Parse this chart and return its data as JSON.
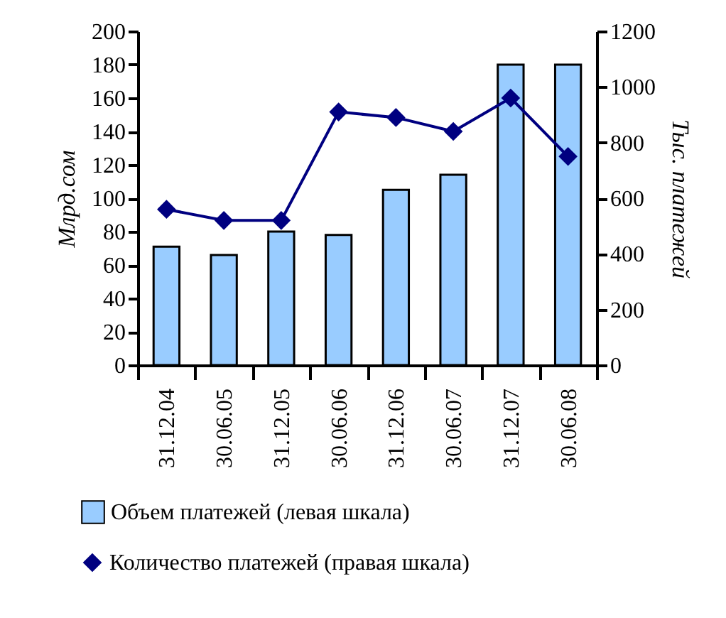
{
  "chart_data": {
    "type": "bar",
    "ylabel": "Млрд.сом",
    "y2label": "Тыс. платежей",
    "categories": [
      "31.12.04",
      "30.06.05",
      "31.12.05",
      "30.06.06",
      "31.12.06",
      "30.06.07",
      "31.12.07",
      "30.06.08"
    ],
    "series": [
      {
        "name": "Объем платежей (левая шкала)",
        "color": "#99ccff",
        "values": [
          71,
          66,
          80,
          78,
          105,
          114,
          180,
          180
        ]
      },
      {
        "name": "Количество платежей (правая шкала)",
        "type": "line",
        "axis": "y2",
        "color": "#000080",
        "marker": "diamond",
        "values": [
          560,
          520,
          520,
          910,
          890,
          840,
          960,
          750
        ]
      }
    ],
    "ylim": [
      0,
      200
    ],
    "yticks": [
      0,
      20,
      40,
      60,
      80,
      100,
      120,
      140,
      160,
      180,
      200
    ],
    "y2lim": [
      0,
      1200
    ],
    "y2ticks": [
      0,
      200,
      400,
      600,
      800,
      1000,
      1200
    ],
    "legend": "bottom",
    "grid": false
  }
}
